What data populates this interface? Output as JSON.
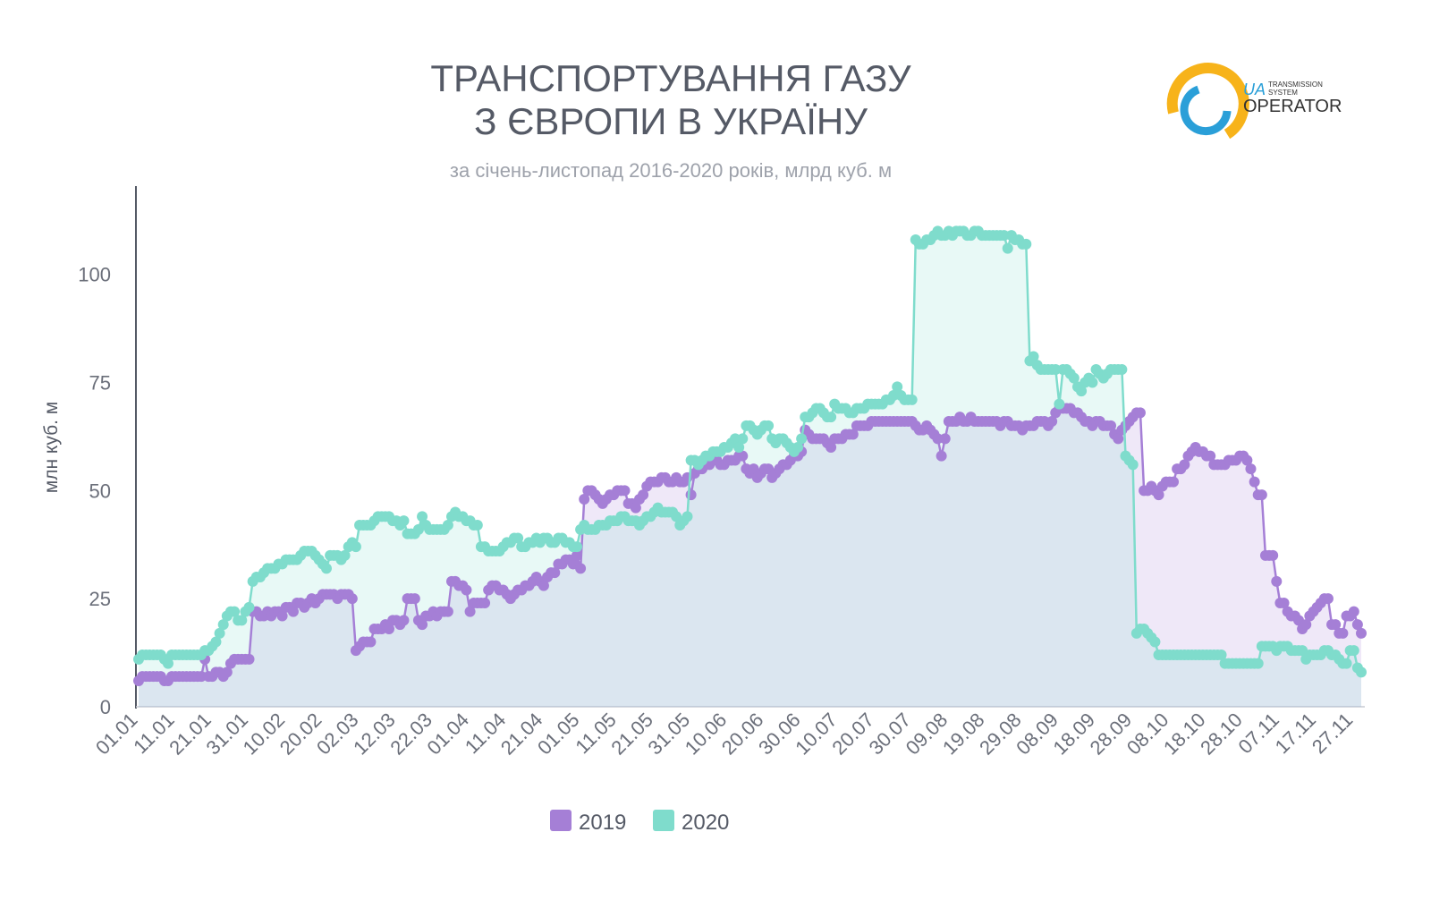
{
  "chart_data": {
    "type": "line",
    "title": [
      "ТРАНСПОРТУВАННЯ ГАЗУ",
      "З ЄВРОПИ В УКРАЇНУ"
    ],
    "subtitle": "за січень-листопад 2016-2020 років, млрд куб. м",
    "y_label": "млн куб. м",
    "ylim": [
      0,
      120
    ],
    "yticks": [
      0,
      25,
      50,
      75,
      100
    ],
    "grid": false,
    "legend": "bottom",
    "categories": [
      "01.01",
      null,
      null,
      null,
      null,
      null,
      null,
      null,
      null,
      null,
      "11.01",
      null,
      null,
      null,
      null,
      null,
      null,
      null,
      null,
      null,
      "21.01",
      null,
      null,
      null,
      null,
      null,
      null,
      null,
      null,
      null,
      "31.01",
      null,
      null,
      null,
      null,
      null,
      null,
      null,
      null,
      null,
      "10.02",
      null,
      null,
      null,
      null,
      null,
      null,
      null,
      null,
      null,
      "20.02",
      null,
      null,
      null,
      null,
      null,
      null,
      null,
      null,
      null,
      "02.03",
      null,
      null,
      null,
      null,
      null,
      null,
      null,
      null,
      null,
      "12.03",
      null,
      null,
      null,
      null,
      null,
      null,
      null,
      null,
      null,
      "22.03",
      null,
      null,
      null,
      null,
      null,
      null,
      null,
      null,
      null,
      "01.04",
      null,
      null,
      null,
      null,
      null,
      null,
      null,
      null,
      null,
      "11.04",
      null,
      null,
      null,
      null,
      null,
      null,
      null,
      null,
      null,
      "21.04",
      null,
      null,
      null,
      null,
      null,
      null,
      null,
      null,
      null,
      "01.05",
      null,
      null,
      null,
      null,
      null,
      null,
      null,
      null,
      null,
      "11.05",
      null,
      null,
      null,
      null,
      null,
      null,
      null,
      null,
      null,
      "21.05",
      null,
      null,
      null,
      null,
      null,
      null,
      null,
      null,
      null,
      "31.05",
      null,
      null,
      null,
      null,
      null,
      null,
      null,
      null,
      null,
      "10.06",
      null,
      null,
      null,
      null,
      null,
      null,
      null,
      null,
      null,
      "20.06",
      null,
      null,
      null,
      null,
      null,
      null,
      null,
      null,
      null,
      "30.06",
      null,
      null,
      null,
      null,
      null,
      null,
      null,
      null,
      null,
      "10.07",
      null,
      null,
      null,
      null,
      null,
      null,
      null,
      null,
      null,
      "20.07",
      null,
      null,
      null,
      null,
      null,
      null,
      null,
      null,
      null,
      "30.07",
      null,
      null,
      null,
      null,
      null,
      null,
      null,
      null,
      null,
      "09.08",
      null,
      null,
      null,
      null,
      null,
      null,
      null,
      null,
      null,
      "19.08",
      null,
      null,
      null,
      null,
      null,
      null,
      null,
      null,
      null,
      "29.08",
      null,
      null,
      null,
      null,
      null,
      null,
      null,
      null,
      null,
      "08.09",
      null,
      null,
      null,
      null,
      null,
      null,
      null,
      null,
      null,
      "18.09",
      null,
      null,
      null,
      null,
      null,
      null,
      null,
      null,
      null,
      "28.09",
      null,
      null,
      null,
      null,
      null,
      null,
      null,
      null,
      null,
      "08.10",
      null,
      null,
      null,
      null,
      null,
      null,
      null,
      null,
      null,
      "18.10",
      null,
      null,
      null,
      null,
      null,
      null,
      null,
      null,
      null,
      "28.10",
      null,
      null,
      null,
      null,
      null,
      null,
      null,
      null,
      null,
      "07.11",
      null,
      null,
      null,
      null,
      null,
      null,
      null,
      null,
      null,
      "17.11",
      null,
      null,
      null,
      null,
      null,
      null,
      null,
      null,
      null,
      "27.11",
      null,
      null
    ],
    "series": [
      {
        "name": "2019",
        "color": "#a57fd6",
        "values": [
          6,
          7,
          7,
          7,
          7,
          7,
          7,
          6,
          6,
          7,
          7,
          7,
          7,
          7,
          7,
          7,
          7,
          7,
          11,
          7,
          7,
          8,
          8,
          7,
          8,
          10,
          11,
          11,
          11,
          11,
          11,
          22,
          22,
          21,
          21,
          22,
          21,
          22,
          22,
          21,
          23,
          23,
          22,
          24,
          24,
          23,
          24,
          25,
          24,
          25,
          26,
          26,
          26,
          26,
          25,
          26,
          26,
          26,
          25,
          13,
          14,
          15,
          15,
          15,
          18,
          18,
          18,
          19,
          18,
          20,
          20,
          19,
          20,
          25,
          25,
          25,
          20,
          19,
          21,
          21,
          22,
          21,
          22,
          22,
          22,
          29,
          29,
          28,
          28,
          27,
          22,
          24,
          24,
          24,
          24,
          27,
          28,
          28,
          27,
          27,
          26,
          25,
          26,
          27,
          27,
          28,
          28,
          29,
          30,
          29,
          28,
          30,
          31,
          31,
          33,
          33,
          34,
          34,
          33,
          35,
          32,
          48,
          50,
          50,
          49,
          48,
          47,
          48,
          49,
          49,
          50,
          50,
          50,
          47,
          47,
          46,
          48,
          49,
          51,
          52,
          52,
          52,
          53,
          53,
          52,
          52,
          53,
          52,
          52,
          53,
          49,
          54,
          55,
          55,
          56,
          56,
          57,
          57,
          56,
          56,
          57,
          57,
          57,
          58,
          58,
          55,
          54,
          55,
          53,
          54,
          55,
          55,
          53,
          54,
          55,
          56,
          56,
          57,
          58,
          58,
          59,
          64,
          63,
          62,
          62,
          62,
          62,
          61,
          60,
          62,
          62,
          62,
          63,
          63,
          63,
          65,
          65,
          65,
          65,
          66,
          66,
          66,
          66,
          66,
          66,
          66,
          66,
          66,
          66,
          66,
          66,
          65,
          64,
          64,
          65,
          64,
          63,
          62,
          58,
          62,
          66,
          66,
          66,
          67,
          66,
          66,
          67,
          66,
          66,
          66,
          66,
          66,
          66,
          66,
          65,
          66,
          66,
          65,
          65,
          65,
          64,
          65,
          65,
          65,
          66,
          66,
          66,
          65,
          66,
          68,
          69,
          69,
          69,
          69,
          68,
          68,
          67,
          66,
          66,
          65,
          66,
          66,
          65,
          65,
          65,
          63,
          62,
          64,
          65,
          66,
          67,
          68,
          68,
          50,
          50,
          51,
          50,
          49,
          51,
          52,
          52,
          52,
          55,
          55,
          56,
          58,
          59,
          60,
          59,
          59,
          58,
          58,
          56,
          56,
          56,
          56,
          57,
          57,
          57,
          58,
          58,
          57,
          55,
          52,
          49,
          49,
          35,
          35,
          35,
          29,
          24,
          24,
          22,
          21,
          21,
          20,
          18,
          19,
          21,
          22,
          23,
          24,
          25,
          25,
          19,
          19,
          17,
          17,
          21,
          21,
          22,
          19,
          17
        ]
      },
      {
        "name": "2020",
        "color": "#7fdccc",
        "values": [
          11,
          12,
          12,
          12,
          12,
          12,
          12,
          11,
          10,
          12,
          12,
          12,
          12,
          12,
          12,
          12,
          12,
          12,
          13,
          13,
          14,
          15,
          17,
          19,
          21,
          22,
          22,
          20,
          20,
          22,
          23,
          29,
          30,
          30,
          31,
          32,
          32,
          32,
          33,
          33,
          34,
          34,
          34,
          34,
          35,
          36,
          36,
          36,
          35,
          34,
          33,
          32,
          35,
          35,
          35,
          34,
          35,
          37,
          38,
          37,
          42,
          42,
          42,
          42,
          43,
          44,
          44,
          44,
          44,
          43,
          43,
          42,
          43,
          40,
          40,
          40,
          41,
          44,
          42,
          41,
          41,
          41,
          41,
          41,
          42,
          44,
          45,
          44,
          44,
          43,
          43,
          42,
          42,
          37,
          37,
          36,
          36,
          36,
          36,
          37,
          38,
          38,
          39,
          39,
          37,
          37,
          38,
          38,
          39,
          38,
          39,
          39,
          38,
          38,
          39,
          39,
          38,
          38,
          37,
          37,
          41,
          42,
          41,
          41,
          41,
          42,
          42,
          42,
          43,
          43,
          43,
          44,
          44,
          43,
          43,
          43,
          42,
          43,
          44,
          44,
          45,
          46,
          45,
          45,
          45,
          45,
          44,
          42,
          43,
          44,
          57,
          57,
          56,
          57,
          58,
          58,
          59,
          59,
          59,
          60,
          60,
          61,
          62,
          60,
          62,
          65,
          65,
          64,
          63,
          64,
          65,
          65,
          62,
          61,
          62,
          62,
          61,
          60,
          59,
          60,
          62,
          67,
          67,
          68,
          69,
          69,
          68,
          67,
          67,
          70,
          69,
          69,
          69,
          68,
          68,
          69,
          69,
          69,
          70,
          70,
          70,
          70,
          70,
          71,
          71,
          72,
          74,
          72,
          71,
          71,
          71,
          108,
          107,
          107,
          108,
          108,
          109,
          110,
          109,
          109,
          110,
          109,
          110,
          110,
          110,
          109,
          109,
          110,
          110,
          109,
          109,
          109,
          109,
          109,
          109,
          109,
          106,
          109,
          108,
          108,
          107,
          107,
          80,
          81,
          79,
          78,
          78,
          78,
          78,
          78,
          70,
          78,
          78,
          77,
          76,
          74,
          73,
          75,
          76,
          75,
          78,
          77,
          76,
          77,
          78,
          78,
          78,
          78,
          58,
          57,
          56,
          17,
          18,
          18,
          17,
          16,
          15,
          12,
          12,
          12,
          12,
          12,
          12,
          12,
          12,
          12,
          12,
          12,
          12,
          12,
          12,
          12,
          12,
          12,
          12,
          10,
          10,
          10,
          10,
          10,
          10,
          10,
          10,
          10,
          10,
          14,
          14,
          14,
          14,
          13,
          14,
          14,
          14,
          13,
          13,
          13,
          13,
          11,
          12,
          12,
          12,
          12,
          13,
          13,
          12,
          12,
          11,
          10,
          10,
          13,
          13,
          9,
          8
        ]
      }
    ]
  },
  "logo": {
    "mark": "UA",
    "line1": "TRANSMISSION",
    "line2": "SYSTEM",
    "name": "OPERATOR"
  }
}
